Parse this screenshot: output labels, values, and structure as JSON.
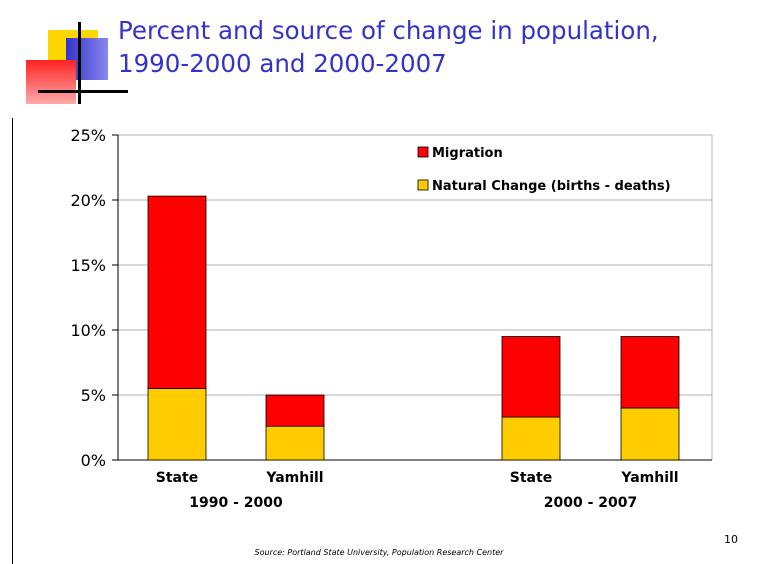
{
  "slide": {
    "title_line1": "Percent and source of change in population,",
    "title_line2": "1990-2000 and 2000-2007",
    "page_number": "10",
    "source": "Source: Portland State University, Population Research Center",
    "decor_colors": [
      "#ffd700",
      "#3333cc",
      "#ff3333"
    ]
  },
  "chart_data": {
    "type": "bar",
    "stacked": true,
    "groups": [
      {
        "label": "1990 - 2000",
        "categories": [
          "State",
          "Yamhill"
        ]
      },
      {
        "label": "2000 - 2007",
        "categories": [
          "State",
          "Yamhill"
        ]
      }
    ],
    "categories": [
      "State",
      "Yamhill",
      "State",
      "Yamhill"
    ],
    "series": [
      {
        "name": "Natural Change (births - deaths)",
        "color": "#ffcc00",
        "values": [
          5.5,
          2.6,
          3.3,
          4.0
        ]
      },
      {
        "name": "Migration",
        "color": "#ff0000",
        "values": [
          14.8,
          2.4,
          6.2,
          5.5
        ]
      }
    ],
    "ylim": [
      0,
      25
    ],
    "yticks": [
      "0%",
      "5%",
      "10%",
      "15%",
      "20%",
      "25%"
    ],
    "grid": true,
    "legend_position": "top-right",
    "title": "",
    "xlabel": "",
    "ylabel": ""
  }
}
